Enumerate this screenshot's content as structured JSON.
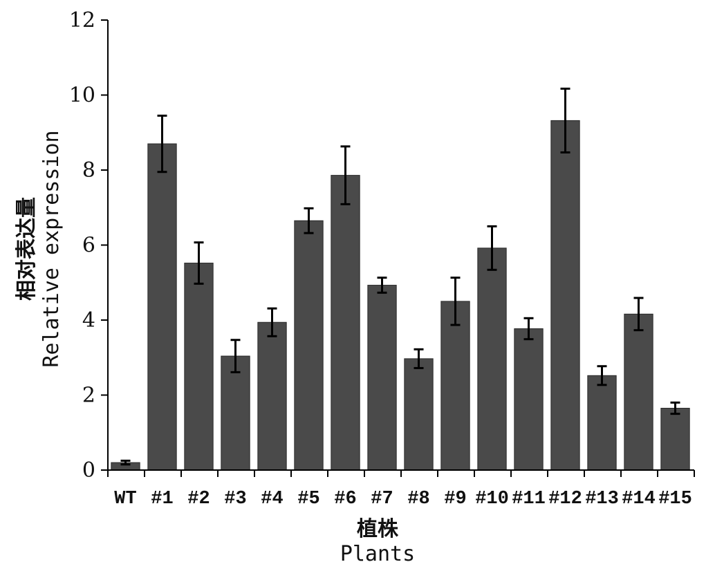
{
  "chart_data": {
    "type": "bar",
    "title": "",
    "xlabel_cn": "植株",
    "xlabel": "Plants",
    "ylabel_cn": "相对表达量",
    "ylabel": "Relative expression",
    "categories": [
      "WT",
      "#1",
      "#2",
      "#3",
      "#4",
      "#5",
      "#6",
      "#7",
      "#8",
      "#9",
      "#10",
      "#11",
      "#12",
      "#13",
      "#14",
      "#15"
    ],
    "values": [
      0.2,
      8.7,
      5.52,
      3.04,
      3.94,
      6.65,
      7.86,
      4.93,
      2.97,
      4.5,
      5.92,
      3.77,
      9.32,
      2.52,
      4.16,
      1.65
    ],
    "errors": [
      0.05,
      0.75,
      0.55,
      0.43,
      0.37,
      0.33,
      0.77,
      0.2,
      0.25,
      0.63,
      0.58,
      0.28,
      0.85,
      0.25,
      0.43,
      0.15
    ],
    "ylim": [
      0,
      12
    ],
    "yticks": [
      0,
      2,
      4,
      6,
      8,
      10,
      12
    ],
    "bar_color": "#4a4a4a",
    "grid": false,
    "legend": "none"
  }
}
